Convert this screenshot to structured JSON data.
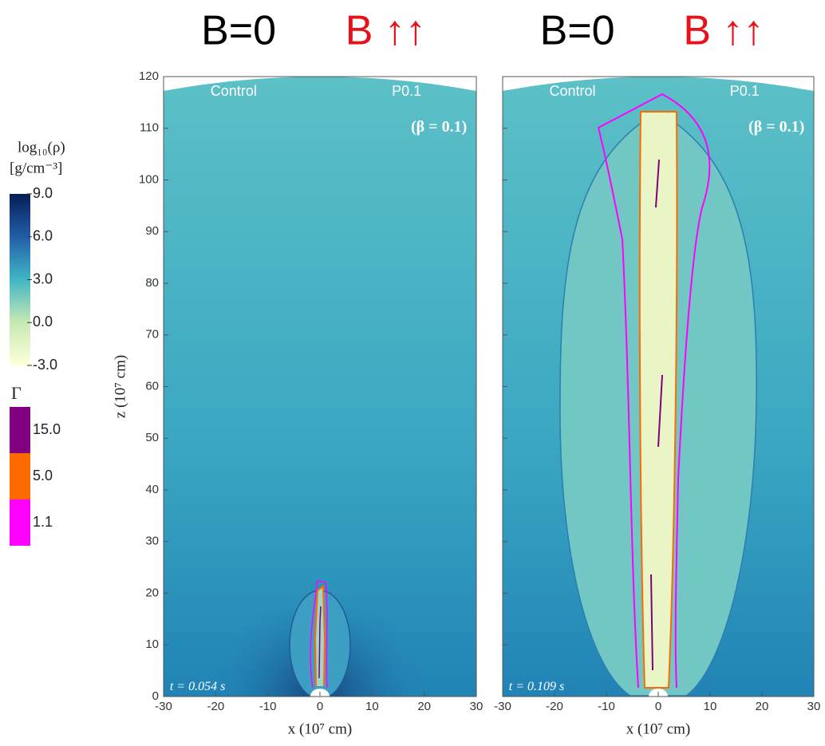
{
  "chart_data": [
    {
      "type": "heatmap",
      "title_left": "B=0",
      "title_right": "B ↑↑",
      "xlabel": "x (10⁷ cm)",
      "ylabel": "z (10⁷ cm)",
      "xlim": [
        -30,
        30
      ],
      "xticks": [
        -30,
        -20,
        -10,
        0,
        10,
        20,
        30
      ],
      "ylim": [
        0,
        120
      ],
      "yticks": [
        0,
        10,
        20,
        30,
        40,
        50,
        60,
        70,
        80,
        90,
        100,
        110,
        120
      ],
      "show_ytick_labels": true,
      "annotations": [
        "Control",
        "P0.1",
        "(β = 0.1)",
        "t = 0.054 s"
      ]
    },
    {
      "type": "heatmap",
      "title_left": "B=0",
      "title_right": "B ↑↑",
      "xlabel": "x (10⁷ cm)",
      "xlim": [
        -30,
        30
      ],
      "xticks": [
        -30,
        -20,
        -10,
        0,
        10,
        20,
        30
      ],
      "ylim": [
        0,
        120
      ],
      "yticks": [
        0,
        10,
        20,
        30,
        40,
        50,
        60,
        70,
        80,
        90,
        100,
        110,
        120
      ],
      "show_ytick_labels": false,
      "annotations": [
        "Control",
        "P0.1",
        "(β = 0.1)",
        "t = 0.109 s"
      ]
    }
  ],
  "colorbar": {
    "label": "log₁₀(ρ)",
    "unit": "[g/cm⁻³]",
    "range": [
      -3,
      9
    ],
    "ticks": [
      {
        "value": 9,
        "label": "9.0"
      },
      {
        "value": 6,
        "label": "6.0"
      },
      {
        "value": 3,
        "label": "3.0"
      },
      {
        "value": 0,
        "label": "0.0"
      },
      {
        "value": -3,
        "label": "-3.0"
      }
    ]
  },
  "gamma_legend": {
    "label": "Γ",
    "levels": [
      {
        "value": 15,
        "label": "15.0",
        "color": "#800080"
      },
      {
        "value": 5,
        "label": "5.0",
        "color": "#ff6a00"
      },
      {
        "value": 1.1,
        "color": "#ff00ff"
      }
    ]
  }
}
